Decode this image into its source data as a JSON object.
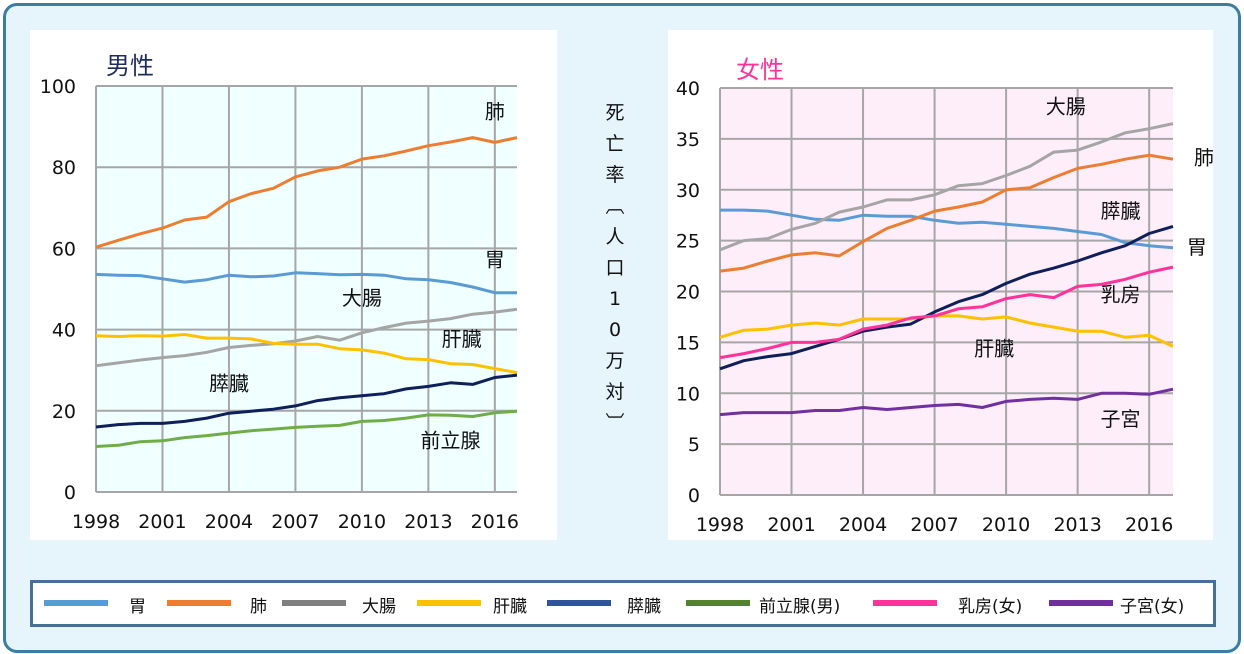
{
  "y_axis_label": "死亡率（人口10万対）",
  "y_axis_label_chars": [
    "死",
    "亡",
    "率",
    "︹",
    "人",
    "口",
    "1",
    "0",
    "万",
    "対",
    "︺"
  ],
  "legend": [
    {
      "label": "胃",
      "color": "#5b9bd5"
    },
    {
      "label": "肺",
      "color": "#ed7d31"
    },
    {
      "label": "大腸",
      "color": "#808080"
    },
    {
      "label": "肝臓",
      "color": "#ffc000"
    },
    {
      "label": "膵臓",
      "color": "#2f5597"
    },
    {
      "label": "前立腺(男)",
      "color": "#548235"
    },
    {
      "label": "乳房(女)",
      "color": "#ff3399"
    },
    {
      "label": "子宮(女)",
      "color": "#7030a0"
    }
  ],
  "chart_data": [
    {
      "type": "line",
      "title": "男性",
      "title_color": "#1f2d5c",
      "background": "#f0ffff",
      "x": [
        1998,
        1999,
        2000,
        2001,
        2002,
        2003,
        2004,
        2005,
        2006,
        2007,
        2008,
        2009,
        2010,
        2011,
        2012,
        2013,
        2014,
        2015,
        2016,
        2017
      ],
      "x_ticks": [
        "1998",
        "2001",
        "2004",
        "2007",
        "2010",
        "2013",
        "2016"
      ],
      "ylim": [
        0,
        100
      ],
      "y_ticks": [
        "0",
        "20",
        "40",
        "60",
        "80",
        "100"
      ],
      "grid": true,
      "series": [
        {
          "name": "胃",
          "color": "#5b9bd5",
          "values": [
            53.6,
            53.4,
            53.3,
            52.5,
            51.7,
            52.3,
            53.4,
            53.0,
            53.2,
            54.0,
            53.8,
            53.5,
            53.6,
            53.4,
            52.5,
            52.3,
            51.6,
            50.5,
            49.1,
            49.1
          ]
        },
        {
          "name": "肺",
          "color": "#ed7d31",
          "values": [
            60.3,
            62.0,
            63.6,
            65.0,
            67.0,
            67.7,
            71.5,
            73.5,
            74.8,
            77.6,
            79.1,
            80.0,
            82.0,
            82.8,
            84.0,
            85.3,
            86.2,
            87.3,
            86.1,
            87.3
          ]
        },
        {
          "name": "大腸",
          "color": "#a5a5a5",
          "values": [
            31.1,
            31.8,
            32.5,
            33.1,
            33.6,
            34.4,
            35.6,
            36.1,
            36.5,
            37.2,
            38.3,
            37.4,
            39.2,
            40.5,
            41.6,
            42.1,
            42.7,
            43.8,
            44.3,
            45.0
          ]
        },
        {
          "name": "肝臓",
          "color": "#ffc000",
          "values": [
            38.5,
            38.3,
            38.5,
            38.4,
            38.8,
            37.9,
            37.9,
            37.7,
            36.6,
            36.4,
            36.4,
            35.3,
            35.0,
            34.2,
            32.8,
            32.6,
            31.6,
            31.4,
            30.4,
            29.4
          ]
        },
        {
          "name": "膵臓",
          "color": "#0f1f5a",
          "values": [
            16.0,
            16.6,
            16.9,
            16.9,
            17.4,
            18.2,
            19.4,
            19.9,
            20.4,
            21.2,
            22.5,
            23.2,
            23.7,
            24.2,
            25.4,
            26.0,
            26.9,
            26.5,
            28.2,
            28.8
          ]
        },
        {
          "name": "前立腺",
          "color": "#70ad47",
          "values": [
            11.2,
            11.5,
            12.4,
            12.6,
            13.4,
            13.9,
            14.5,
            15.1,
            15.5,
            15.9,
            16.2,
            16.4,
            17.4,
            17.6,
            18.2,
            19.0,
            18.9,
            18.6,
            19.5,
            19.9
          ]
        }
      ]
    },
    {
      "type": "line",
      "title": "女性",
      "title_color": "#ff3399",
      "background": "#fdeefa",
      "x": [
        1998,
        1999,
        2000,
        2001,
        2002,
        2003,
        2004,
        2005,
        2006,
        2007,
        2008,
        2009,
        2010,
        2011,
        2012,
        2013,
        2014,
        2015,
        2016,
        2017
      ],
      "x_ticks": [
        "1998",
        "2001",
        "2004",
        "2007",
        "2010",
        "2013",
        "2016"
      ],
      "ylim": [
        0,
        40
      ],
      "y_ticks": [
        "0",
        "5",
        "10",
        "15",
        "20",
        "25",
        "30",
        "35",
        "40"
      ],
      "grid": true,
      "series": [
        {
          "name": "胃",
          "color": "#5b9bd5",
          "values": [
            28.0,
            28.0,
            27.9,
            27.5,
            27.1,
            27.0,
            27.5,
            27.4,
            27.4,
            27.0,
            26.7,
            26.8,
            26.6,
            26.4,
            26.2,
            25.9,
            25.6,
            24.8,
            24.5,
            24.3
          ]
        },
        {
          "name": "肺",
          "color": "#ed7d31",
          "values": [
            22.0,
            22.3,
            23.0,
            23.6,
            23.8,
            23.5,
            24.9,
            26.2,
            27.0,
            27.9,
            28.3,
            28.8,
            30.0,
            30.2,
            31.2,
            32.1,
            32.5,
            33.0,
            33.4,
            33.0
          ]
        },
        {
          "name": "大腸",
          "color": "#a5a5a5",
          "values": [
            24.1,
            25.0,
            25.2,
            26.1,
            26.7,
            27.8,
            28.3,
            29.0,
            29.0,
            29.5,
            30.4,
            30.6,
            31.4,
            32.3,
            33.7,
            33.9,
            34.7,
            35.6,
            36.0,
            36.5
          ]
        },
        {
          "name": "肝臓",
          "color": "#ffc000",
          "values": [
            15.5,
            16.2,
            16.3,
            16.7,
            16.9,
            16.7,
            17.3,
            17.3,
            17.3,
            17.6,
            17.6,
            17.3,
            17.5,
            16.9,
            16.5,
            16.1,
            16.1,
            15.5,
            15.7,
            14.6
          ]
        },
        {
          "name": "膵臓",
          "color": "#0f1f5a",
          "values": [
            12.4,
            13.2,
            13.6,
            13.9,
            14.6,
            15.3,
            16.1,
            16.5,
            16.8,
            18.0,
            19.0,
            19.7,
            20.8,
            21.7,
            22.3,
            23.0,
            23.8,
            24.5,
            25.7,
            26.4
          ]
        },
        {
          "name": "乳房",
          "color": "#ff3399",
          "values": [
            13.5,
            13.9,
            14.4,
            15.0,
            15.0,
            15.3,
            16.3,
            16.7,
            17.4,
            17.6,
            18.3,
            18.5,
            19.3,
            19.7,
            19.4,
            20.5,
            20.7,
            21.2,
            21.9,
            22.4
          ]
        },
        {
          "name": "子宮",
          "color": "#7030a0",
          "values": [
            7.9,
            8.1,
            8.1,
            8.1,
            8.3,
            8.3,
            8.6,
            8.4,
            8.6,
            8.8,
            8.9,
            8.6,
            9.2,
            9.4,
            9.5,
            9.4,
            10.0,
            10.0,
            9.9,
            10.4
          ]
        }
      ]
    }
  ]
}
